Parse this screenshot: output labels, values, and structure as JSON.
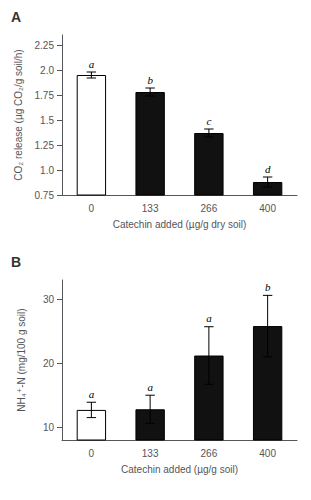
{
  "chart_data": [
    {
      "type": "bar",
      "title": "A",
      "categories": [
        "0",
        "133",
        "266",
        "400"
      ],
      "values": [
        1.95,
        1.78,
        1.37,
        0.88
      ],
      "errors": [
        0.03,
        0.04,
        0.04,
        0.05
      ],
      "annotations": [
        "a",
        "b",
        "c",
        "d"
      ],
      "colors": [
        "#ffffff",
        "#111111",
        "#111111",
        "#111111"
      ],
      "xlabel": "Catechin added (µg/g dry soil)",
      "ylabel": "CO₂ release (µg CO₂/g soil/h)",
      "ylim": [
        0.75,
        2.35
      ],
      "yticks": [
        0.75,
        {
          "value": 1.0,
          "label": "1.0"
        },
        1.25,
        1.5,
        1.75,
        {
          "value": 2.0,
          "label": "2.0"
        },
        2.25
      ],
      "grid": false
    },
    {
      "type": "bar",
      "title": "B",
      "categories": [
        "0",
        "133",
        "266",
        "400"
      ],
      "values": [
        12.7,
        12.8,
        21.2,
        25.8
      ],
      "errors": [
        1.2,
        2.2,
        4.5,
        4.8
      ],
      "annotations": [
        "a",
        "a",
        "a",
        "b"
      ],
      "colors": [
        "#ffffff",
        "#111111",
        "#111111",
        "#111111"
      ],
      "xlabel": "Catechin added (µg/g soil)",
      "ylabel": "NH₄⁺-N (mg/100 g soil)",
      "ylim": [
        8,
        33
      ],
      "yticks": [
        10,
        20,
        30
      ],
      "grid": false
    }
  ]
}
